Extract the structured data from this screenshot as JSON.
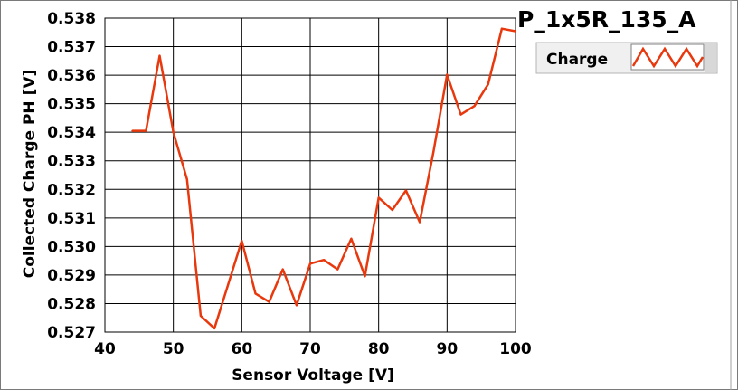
{
  "chart_data": {
    "type": "line",
    "title": "P_1x5R_135_A",
    "xlabel": "Sensor Voltage [V]",
    "ylabel": "Collected Charge PH [V]",
    "xlim": [
      40,
      100
    ],
    "ylim": [
      0.527,
      0.538
    ],
    "x_ticks": [
      "40",
      "50",
      "60",
      "70",
      "80",
      "90",
      "100"
    ],
    "y_ticks": [
      "0.527",
      "0.528",
      "0.529",
      "0.530",
      "0.531",
      "0.532",
      "0.533",
      "0.534",
      "0.535",
      "0.536",
      "0.537",
      "0.538"
    ],
    "grid": true,
    "legend_position": "top-right",
    "series": [
      {
        "name": "Charge",
        "color": "#e8380d",
        "points": [
          [
            44,
            0.53405
          ],
          [
            46,
            0.53405
          ],
          [
            48,
            0.53668
          ],
          [
            50,
            0.534
          ],
          [
            52,
            0.53235
          ],
          [
            54,
            0.52757
          ],
          [
            56,
            0.52713
          ],
          [
            58,
            0.52866
          ],
          [
            60,
            0.5302
          ],
          [
            62,
            0.52835
          ],
          [
            64,
            0.52806
          ],
          [
            66,
            0.5292
          ],
          [
            68,
            0.52794
          ],
          [
            70,
            0.5294
          ],
          [
            72,
            0.52953
          ],
          [
            74,
            0.5292
          ],
          [
            76,
            0.53027
          ],
          [
            78,
            0.52896
          ],
          [
            80,
            0.53171
          ],
          [
            82,
            0.53128
          ],
          [
            84,
            0.53196
          ],
          [
            86,
            0.53085
          ],
          [
            88,
            0.5333
          ],
          [
            90,
            0.53602
          ],
          [
            92,
            0.53462
          ],
          [
            94,
            0.53492
          ],
          [
            96,
            0.53568
          ],
          [
            98,
            0.53763
          ],
          [
            100,
            0.53754
          ]
        ]
      }
    ]
  }
}
